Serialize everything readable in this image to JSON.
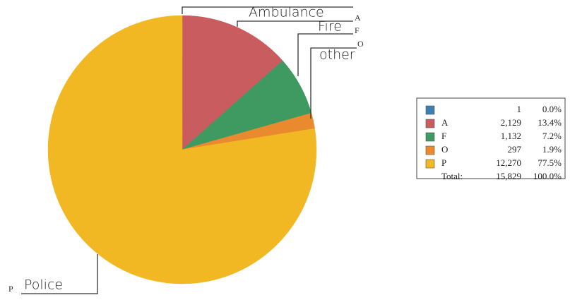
{
  "chart_data": {
    "type": "pie",
    "categories": [
      null,
      "A",
      "F",
      "O",
      "P"
    ],
    "values": [
      1,
      2129,
      1132,
      297,
      12270
    ],
    "value_labels": [
      "1",
      "2,129",
      "1,132",
      "297",
      "12,270"
    ],
    "percents": [
      0.0,
      13.4,
      7.2,
      1.9,
      77.5
    ],
    "percent_labels": [
      "0.0%",
      "13.4%",
      "7.2%",
      "1.9%",
      "77.5%"
    ],
    "colors": [
      "#3b7fb0",
      "#c95c5e",
      "#3f9a62",
      "#ea8a2e",
      "#f2b824"
    ],
    "total": {
      "label": "Total:",
      "value": 15829,
      "value_label": "15,829",
      "percent": 100.0,
      "percent_label": "100.0%"
    },
    "annotations": [
      "Ambulance",
      "Fire",
      "other",
      "Police"
    ]
  }
}
